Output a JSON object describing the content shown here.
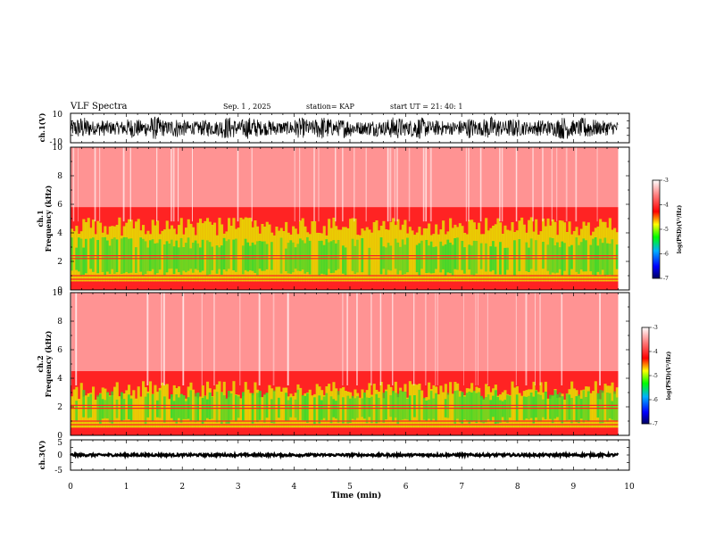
{
  "header": {
    "title": "VLF Spectra",
    "date": "Sep. 1 , 2025",
    "station": "station= KAP",
    "start": "start UT = 21: 40: 1"
  },
  "chart_data": {
    "type": "heatmap",
    "x_axis": {
      "label": "Time (min)",
      "range": [
        0,
        10
      ],
      "ticks": [
        "0",
        "1",
        "2",
        "3",
        "4",
        "5",
        "6",
        "7",
        "8",
        "9",
        "10"
      ]
    },
    "panels": [
      {
        "id": "ch1-waveform",
        "type": "line",
        "ylabel": "ch.1(V)",
        "ylim": [
          -10,
          10
        ],
        "yticks": [
          "10",
          "-10"
        ],
        "amplitude_range": [
          -8,
          8
        ]
      },
      {
        "id": "ch1-spectrogram",
        "type": "heatmap",
        "ylabel_line1": "ch.1",
        "ylabel_line2": "Frequency (kHz)",
        "ylim": [
          0,
          10
        ],
        "yticks": [
          "0",
          "2",
          "4",
          "6",
          "8",
          "10"
        ],
        "band_top_khz": 4.8,
        "core_band_khz": [
          1.0,
          3.5
        ],
        "hum_lines_khz": [
          0.25,
          0.5,
          0.75,
          1.0,
          2.2,
          2.4
        ]
      },
      {
        "id": "ch2-spectrogram",
        "type": "heatmap",
        "ylabel_line1": "ch.2",
        "ylabel_line2": "Frequency (kHz)",
        "ylim": [
          0,
          10
        ],
        "yticks": [
          "0",
          "2",
          "4",
          "6",
          "8",
          "10"
        ],
        "band_top_khz": 3.5,
        "core_band_khz": [
          0.8,
          3.0
        ],
        "hum_lines_khz": [
          0.25,
          0.5,
          0.75,
          1.0,
          1.9,
          2.1
        ]
      },
      {
        "id": "ch3-waveform",
        "type": "line",
        "ylabel": "ch.3(V)",
        "ylim": [
          -5,
          5
        ],
        "yticks": [
          "5",
          "0",
          "-5"
        ],
        "amplitude_range": [
          -0.4,
          0.4
        ]
      }
    ],
    "colorbar": {
      "label": "log(PSD)(V²/Hz)",
      "range": [
        -7,
        -3
      ],
      "ticks": [
        "-3",
        "-4",
        "-5",
        "-6",
        "-7"
      ],
      "colors": [
        "#000080",
        "#0000ff",
        "#00c0ff",
        "#00ff00",
        "#ffff00",
        "#ff0000",
        "#ffffff"
      ]
    }
  }
}
